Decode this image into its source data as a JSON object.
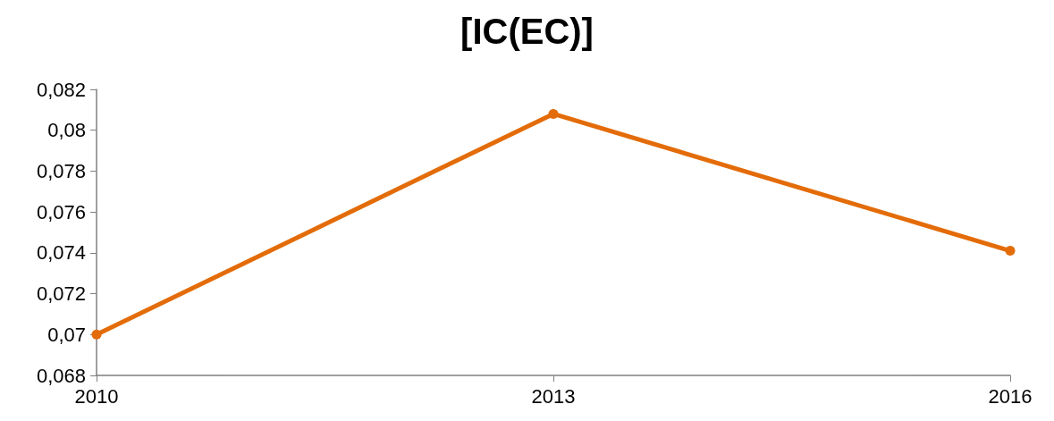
{
  "chart_data": {
    "type": "line",
    "title": "[IC(EC)]",
    "categories": [
      "2010",
      "2013",
      "2016"
    ],
    "series": [
      {
        "color": "#e36c09",
        "values": [
          0.07,
          0.0808,
          0.0741
        ]
      }
    ],
    "ylim": [
      0.068,
      0.082
    ],
    "yticks": [
      {
        "value": 0.068,
        "label": "0,068"
      },
      {
        "value": 0.07,
        "label": "0,07"
      },
      {
        "value": 0.072,
        "label": "0,072"
      },
      {
        "value": 0.074,
        "label": "0,074"
      },
      {
        "value": 0.076,
        "label": "0,076"
      },
      {
        "value": 0.078,
        "label": "0,078"
      },
      {
        "value": 0.08,
        "label": "0,08"
      },
      {
        "value": 0.082,
        "label": "0,082"
      }
    ],
    "grid": false,
    "marker": "circle",
    "line_style": "solid"
  }
}
